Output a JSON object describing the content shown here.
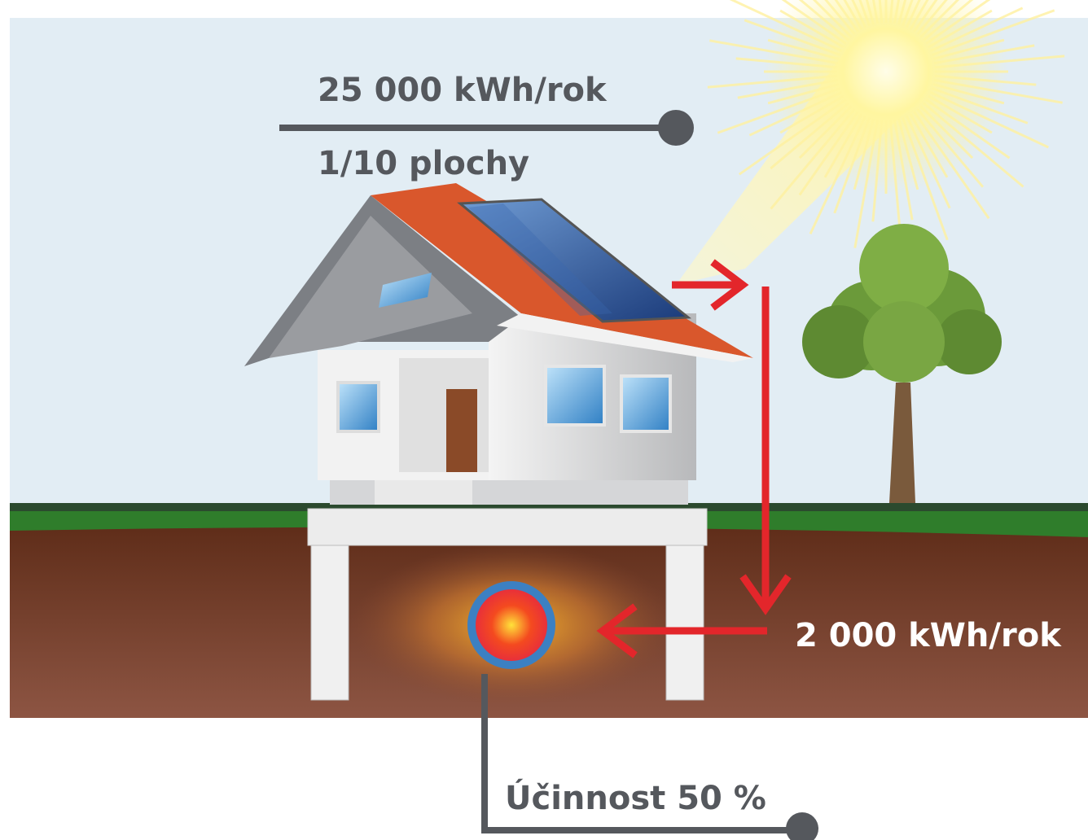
{
  "labels": {
    "solar_energy": "25 000 kWh/rok",
    "area_share": "1/10 plochy",
    "stored_energy": "2 000 kWh/rok",
    "efficiency": "Účinnost 50 %"
  }
}
